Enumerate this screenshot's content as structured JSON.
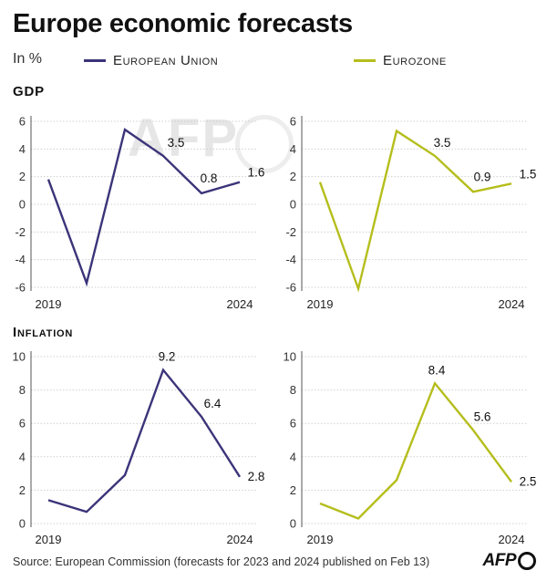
{
  "title": "Europe economic forecasts",
  "unit": "In %",
  "legend": {
    "eu": {
      "label": "European Union",
      "color": "#3b3479"
    },
    "ez": {
      "label": "Eurozone",
      "color": "#b5be1c"
    }
  },
  "sections": {
    "gdp": "GDP",
    "inflation": "Inflation"
  },
  "source": "Source: European Commission (forecasts for 2023 and 2024 published on Feb 13)",
  "logo": "AFP",
  "watermark": "AFP",
  "chart_data": [
    {
      "id": "gdp-eu",
      "type": "line",
      "title": "GDP",
      "series_name": "European Union",
      "x": [
        2019,
        2020,
        2021,
        2022,
        2023,
        2024
      ],
      "values": [
        1.8,
        -5.7,
        5.4,
        3.5,
        0.8,
        1.6
      ],
      "labels": [
        null,
        null,
        null,
        "3.5",
        "0.8",
        "1.6"
      ],
      "ylim": [
        -6,
        6
      ],
      "yticks": [
        "6",
        "4",
        "2",
        "0",
        "-2",
        "-4",
        "-6"
      ],
      "xticks": [
        "2019",
        "2024"
      ],
      "color": "#3b3479"
    },
    {
      "id": "gdp-ez",
      "type": "line",
      "title": "GDP",
      "series_name": "Eurozone",
      "x": [
        2019,
        2020,
        2021,
        2022,
        2023,
        2024
      ],
      "values": [
        1.6,
        -6.1,
        5.3,
        3.5,
        0.9,
        1.5
      ],
      "labels": [
        null,
        null,
        null,
        "3.5",
        "0.9",
        "1.5"
      ],
      "ylim": [
        -6,
        6
      ],
      "yticks": [
        "6",
        "4",
        "2",
        "0",
        "-2",
        "-4",
        "-6"
      ],
      "xticks": [
        "2019",
        "2024"
      ],
      "color": "#b5be1c"
    },
    {
      "id": "inf-eu",
      "type": "line",
      "title": "Inflation",
      "series_name": "European Union",
      "x": [
        2019,
        2020,
        2021,
        2022,
        2023,
        2024
      ],
      "values": [
        1.4,
        0.7,
        2.9,
        9.2,
        6.4,
        2.8
      ],
      "labels": [
        null,
        null,
        null,
        "9.2",
        "6.4",
        "2.8"
      ],
      "ylim": [
        0,
        10
      ],
      "yticks": [
        "10",
        "8",
        "6",
        "4",
        "2",
        "0"
      ],
      "xticks": [
        "2019",
        "2024"
      ],
      "color": "#3b3479"
    },
    {
      "id": "inf-ez",
      "type": "line",
      "title": "Inflation",
      "series_name": "Eurozone",
      "x": [
        2019,
        2020,
        2021,
        2022,
        2023,
        2024
      ],
      "values": [
        1.2,
        0.3,
        2.6,
        8.4,
        5.6,
        2.5
      ],
      "labels": [
        null,
        null,
        null,
        "8.4",
        "5.6",
        "2.5"
      ],
      "ylim": [
        0,
        10
      ],
      "yticks": [
        "10",
        "8",
        "6",
        "4",
        "2",
        "0"
      ],
      "xticks": [
        "2019",
        "2024"
      ],
      "color": "#b5be1c"
    }
  ]
}
